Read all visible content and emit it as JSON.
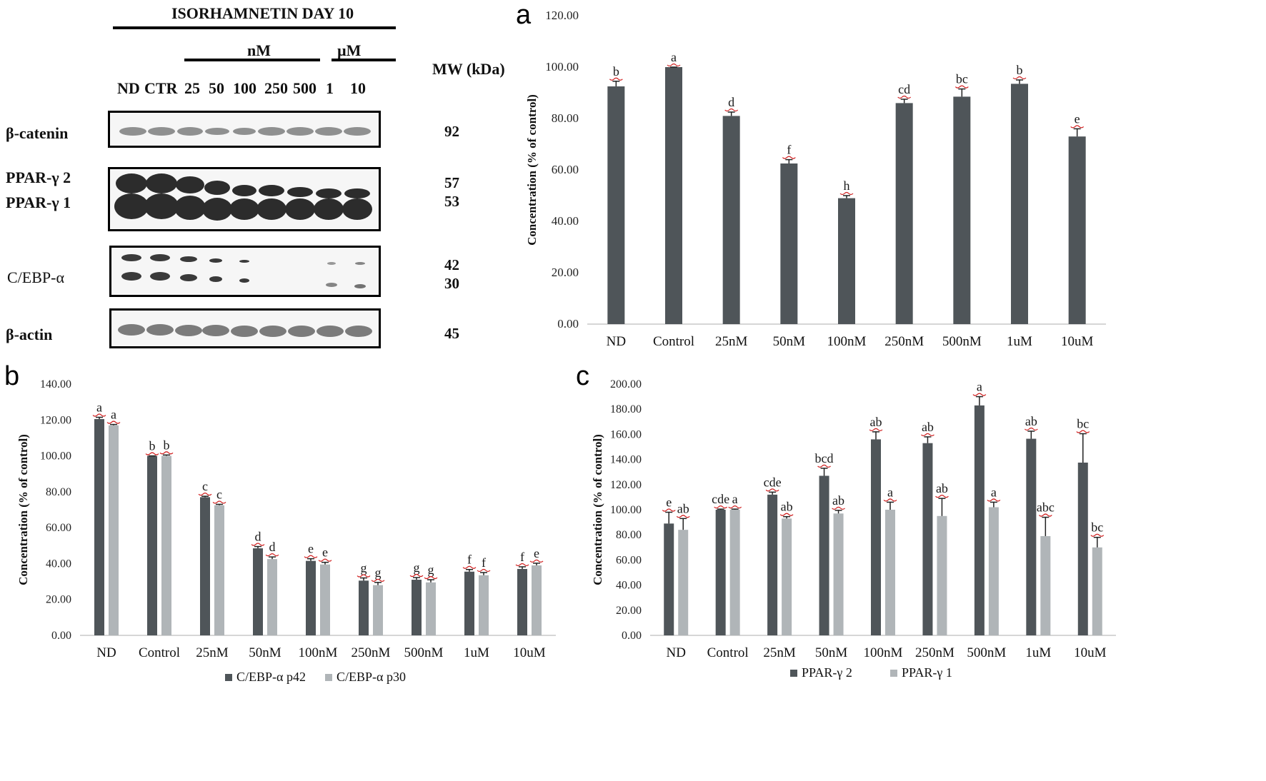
{
  "panel_labels": {
    "a": "a",
    "b": "b",
    "c": "c"
  },
  "blot": {
    "title": "ISORHAMNETIN DAY 10",
    "unit_nM": "nM",
    "unit_uM": "µM",
    "mw_header": "MW (kDa)",
    "lanes": [
      "ND",
      "CTR",
      "25",
      "50",
      "100",
      "250",
      "500",
      "1",
      "10"
    ],
    "rows": [
      {
        "label": "β-catenin",
        "mw": [
          "92"
        ]
      },
      {
        "label": "PPAR-γ 2",
        "mw": [
          "57"
        ]
      },
      {
        "label": "PPAR-γ 1",
        "mw": [
          "53"
        ]
      },
      {
        "label": "C/EBP-α",
        "mw": [
          "42",
          "30"
        ]
      },
      {
        "label": "β-actin",
        "mw": [
          "45"
        ]
      }
    ]
  },
  "chart_data": [
    {
      "id": "a",
      "type": "bar",
      "categories": [
        "ND",
        "Control",
        "25nM",
        "50nM",
        "100nM",
        "250nM",
        "500nM",
        "1uM",
        "10uM"
      ],
      "ylabel": "Concentration (% of control)",
      "ylim": [
        0,
        120
      ],
      "ytick_step": 20,
      "series": [
        {
          "values": [
            92.5,
            100,
            81,
            62.5,
            49,
            86,
            88.5,
            93.5,
            73
          ],
          "errors": [
            2,
            0,
            1.5,
            1.5,
            1,
            1.5,
            3,
            1.5,
            3
          ],
          "letters": [
            "b",
            "a",
            "d",
            "f",
            "h",
            "cd",
            "bc",
            "b",
            "e"
          ]
        }
      ]
    },
    {
      "id": "b",
      "type": "bar",
      "categories": [
        "ND",
        "Control",
        "25nM",
        "50nM",
        "100nM",
        "250nM",
        "500nM",
        "1uM",
        "10uM"
      ],
      "ylabel": "Concentration (% of control)",
      "ylim": [
        0,
        140
      ],
      "ytick_step": 20,
      "legend": "bottom",
      "series": [
        {
          "name": "C/EBP-α p42",
          "values": [
            120.5,
            100,
            77,
            48.5,
            41.5,
            30.5,
            31,
            35.5,
            37
          ],
          "errors": [
            1,
            0,
            0.5,
            1,
            1.2,
            1.5,
            1.2,
            1.2,
            1.2
          ],
          "letters": [
            "a",
            "b",
            "c",
            "d",
            "e",
            "g",
            "g",
            "f",
            "f"
          ]
        },
        {
          "name": "C/EBP-α p30",
          "values": [
            117,
            100,
            72.5,
            42.5,
            39.5,
            28,
            29.5,
            33.5,
            39
          ],
          "errors": [
            0.5,
            0.5,
            0.5,
            1.2,
            1.2,
            1.5,
            1.5,
            1.5,
            1.2
          ],
          "letters": [
            "a",
            "b",
            "c",
            "d",
            "e",
            "g",
            "g",
            "f",
            "e"
          ]
        }
      ]
    },
    {
      "id": "c",
      "type": "bar",
      "categories": [
        "ND",
        "Control",
        "25nM",
        "50nM",
        "100nM",
        "250nM",
        "500nM",
        "1uM",
        "10uM"
      ],
      "ylabel": "Concentration (% of control)",
      "ylim": [
        0,
        200
      ],
      "ytick_step": 20,
      "legend": "bottom",
      "series": [
        {
          "name": "PPAR-γ 2",
          "values": [
            89,
            100,
            112,
            127,
            156,
            153,
            183,
            156.5,
            137.5
          ],
          "errors": [
            9,
            0.5,
            2,
            6,
            6,
            5,
            7,
            6,
            23
          ],
          "letters": [
            "e",
            "cde",
            "cde",
            "bcd",
            "ab",
            "ab",
            "a",
            "ab",
            "bc"
          ]
        },
        {
          "name": "PPAR-γ 1",
          "values": [
            84,
            100,
            93,
            97,
            100,
            95,
            102,
            79,
            70
          ],
          "errors": [
            9,
            0.5,
            1.5,
            2.5,
            6,
            14,
            4,
            15,
            8
          ],
          "letters": [
            "ab",
            "a",
            "ab",
            "ab",
            "a",
            "ab",
            "a",
            "abc",
            "bc"
          ]
        }
      ]
    }
  ],
  "colors": {
    "dark": "#4f5559",
    "light": "#b0b5b8",
    "letters": "#1c7a1c",
    "wavy": "#d02020"
  }
}
